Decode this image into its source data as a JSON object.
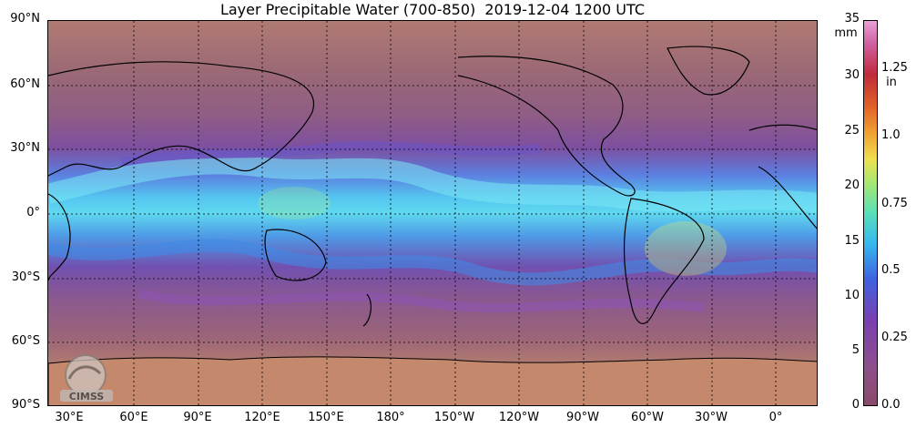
{
  "title": "Layer Precipitable Water (700-850)  2019-12-04 1200 UTC",
  "lat_labels": [
    "90°N",
    "60°N",
    "30°N",
    "0°",
    "30°S",
    "60°S",
    "90°S"
  ],
  "lon_labels": [
    "30°E",
    "60°E",
    "90°E",
    "120°E",
    "150°E",
    "180°",
    "150°W",
    "120°W",
    "90°W",
    "60°W",
    "30°W",
    "0°"
  ],
  "colorbar": {
    "mm_unit": "mm",
    "in_unit": "in",
    "mm_ticks": [
      "35",
      "30",
      "25",
      "20",
      "15",
      "10",
      "5",
      "0"
    ],
    "in_ticks": [
      "1.25",
      "1.0",
      "0.75",
      "0.5",
      "0.25",
      "0.0"
    ],
    "range_mm": [
      0,
      35
    ]
  },
  "logo_text": "CIMSS",
  "colors": {
    "dry": "#b07a72",
    "moist": "#54c6f0",
    "gridline": "#000000",
    "coastline": "#000000"
  }
}
